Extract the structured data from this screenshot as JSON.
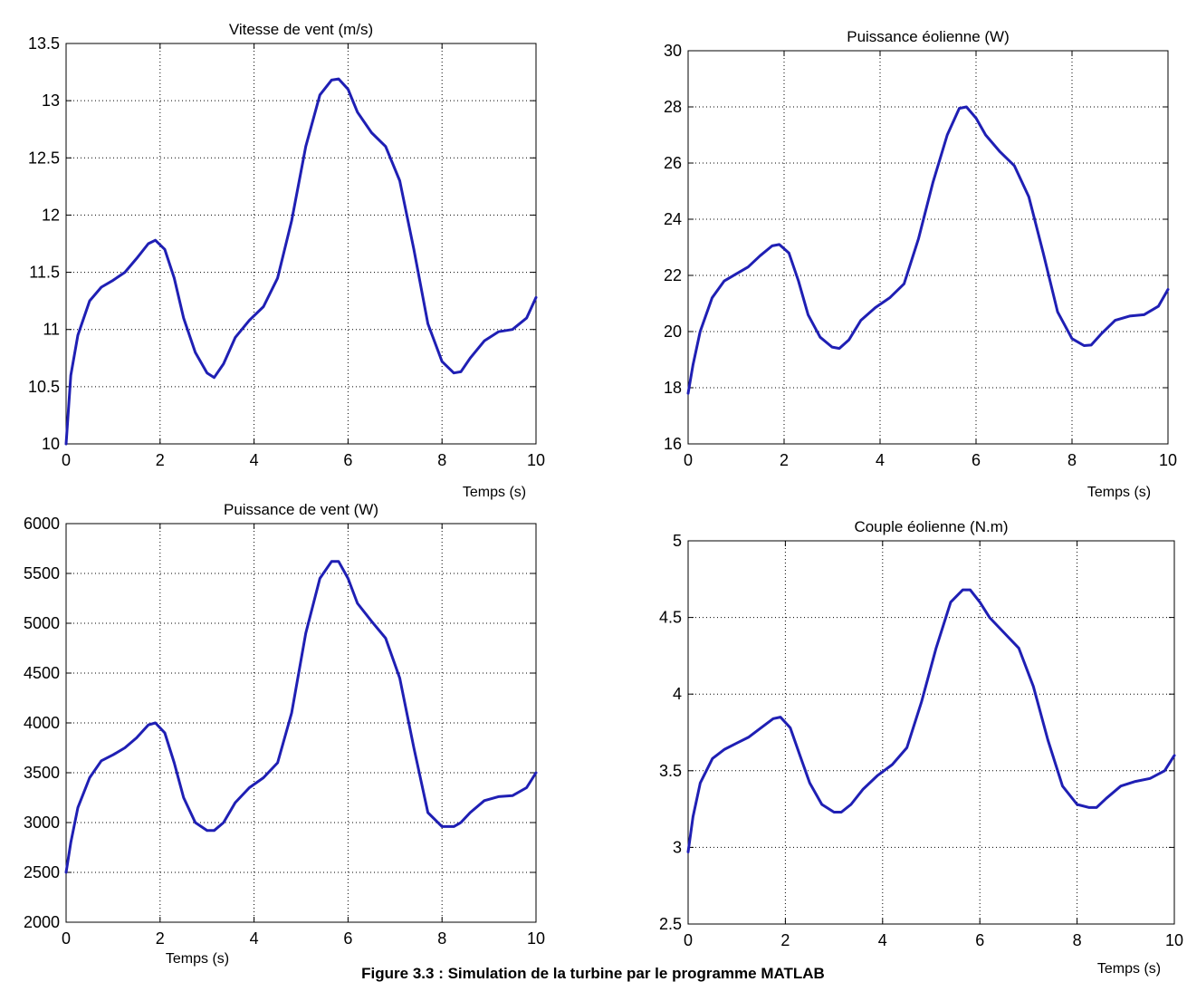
{
  "caption": "Figure 3.3 : Simulation de la turbine par le programme MATLAB",
  "style": {
    "line_color": "#1f1fb4",
    "grid_color": "#000000",
    "background": "#ffffff"
  },
  "chart_data": [
    {
      "type": "line",
      "title": "Vitesse de vent (m/s)",
      "xlabel": "Temps (s)",
      "ylabel": "",
      "xlim": [
        0,
        10
      ],
      "ylim": [
        10,
        13.5
      ],
      "xticks": [
        0,
        2,
        4,
        6,
        8,
        10
      ],
      "yticks": [
        10,
        10.5,
        11,
        11.5,
        12,
        12.5,
        13,
        13.5
      ],
      "grid": true,
      "x": [
        0,
        0.1,
        0.25,
        0.5,
        0.75,
        1.0,
        1.25,
        1.5,
        1.75,
        1.9,
        2.1,
        2.3,
        2.5,
        2.75,
        3.0,
        3.15,
        3.35,
        3.6,
        3.9,
        4.2,
        4.5,
        4.8,
        5.1,
        5.4,
        5.65,
        5.8,
        6.0,
        6.2,
        6.5,
        6.8,
        7.1,
        7.4,
        7.7,
        8.0,
        8.25,
        8.4,
        8.6,
        8.9,
        9.2,
        9.5,
        9.8,
        10.0
      ],
      "y": [
        10.0,
        10.6,
        10.95,
        11.25,
        11.37,
        11.43,
        11.5,
        11.62,
        11.75,
        11.78,
        11.7,
        11.45,
        11.1,
        10.8,
        10.62,
        10.58,
        10.7,
        10.93,
        11.08,
        11.2,
        11.45,
        11.95,
        12.6,
        13.05,
        13.18,
        13.19,
        13.1,
        12.9,
        12.72,
        12.6,
        12.3,
        11.7,
        11.05,
        10.72,
        10.62,
        10.63,
        10.75,
        10.9,
        10.98,
        11.0,
        11.1,
        11.28
      ]
    },
    {
      "type": "line",
      "title": "Puissance éolienne (W)",
      "xlabel": "Temps (s)",
      "ylabel": "",
      "xlim": [
        0,
        10
      ],
      "ylim": [
        16,
        30
      ],
      "xticks": [
        0,
        2,
        4,
        6,
        8,
        10
      ],
      "yticks": [
        16,
        18,
        20,
        22,
        24,
        26,
        28,
        30
      ],
      "grid": true,
      "x": [
        0,
        0.1,
        0.25,
        0.5,
        0.75,
        1.0,
        1.25,
        1.5,
        1.75,
        1.9,
        2.1,
        2.3,
        2.5,
        2.75,
        3.0,
        3.15,
        3.35,
        3.6,
        3.9,
        4.2,
        4.5,
        4.8,
        5.1,
        5.4,
        5.65,
        5.8,
        6.0,
        6.2,
        6.5,
        6.8,
        7.1,
        7.4,
        7.7,
        8.0,
        8.25,
        8.4,
        8.6,
        8.9,
        9.2,
        9.5,
        9.8,
        10.0
      ],
      "y": [
        17.8,
        18.8,
        20.0,
        21.2,
        21.8,
        22.05,
        22.3,
        22.7,
        23.05,
        23.1,
        22.8,
        21.8,
        20.6,
        19.8,
        19.45,
        19.4,
        19.7,
        20.4,
        20.85,
        21.2,
        21.7,
        23.3,
        25.3,
        27.0,
        27.95,
        28.0,
        27.6,
        27.0,
        26.4,
        25.9,
        24.8,
        22.8,
        20.7,
        19.75,
        19.5,
        19.52,
        19.9,
        20.4,
        20.55,
        20.6,
        20.9,
        21.5
      ]
    },
    {
      "type": "line",
      "title": "Puissance de vent (W)",
      "xlabel": "Temps (s)",
      "ylabel": "",
      "xlim": [
        0,
        10
      ],
      "ylim": [
        2000,
        6000
      ],
      "xticks": [
        0,
        2,
        4,
        6,
        8,
        10
      ],
      "yticks": [
        2000,
        2500,
        3000,
        3500,
        4000,
        4500,
        5000,
        5500,
        6000
      ],
      "grid": true,
      "x": [
        0,
        0.1,
        0.25,
        0.5,
        0.75,
        1.0,
        1.25,
        1.5,
        1.75,
        1.9,
        2.1,
        2.3,
        2.5,
        2.75,
        3.0,
        3.15,
        3.35,
        3.6,
        3.9,
        4.2,
        4.5,
        4.8,
        5.1,
        5.4,
        5.65,
        5.8,
        6.0,
        6.2,
        6.5,
        6.8,
        7.1,
        7.4,
        7.7,
        8.0,
        8.25,
        8.4,
        8.6,
        8.9,
        9.2,
        9.5,
        9.8,
        10.0
      ],
      "y": [
        2500,
        2800,
        3150,
        3450,
        3620,
        3680,
        3750,
        3850,
        3980,
        4000,
        3900,
        3600,
        3250,
        3000,
        2920,
        2920,
        3000,
        3200,
        3350,
        3450,
        3600,
        4100,
        4900,
        5450,
        5620,
        5620,
        5450,
        5200,
        5020,
        4850,
        4450,
        3750,
        3100,
        2960,
        2960,
        3000,
        3100,
        3220,
        3260,
        3270,
        3350,
        3500
      ]
    },
    {
      "type": "line",
      "title": "Couple éolienne (N.m)",
      "xlabel": "Temps (s)",
      "ylabel": "",
      "xlim": [
        0,
        10
      ],
      "ylim": [
        2.5,
        5
      ],
      "xticks": [
        0,
        2,
        4,
        6,
        8,
        10
      ],
      "yticks": [
        2.5,
        3,
        3.5,
        4,
        4.5,
        5
      ],
      "grid": true,
      "x": [
        0,
        0.1,
        0.25,
        0.5,
        0.75,
        1.0,
        1.25,
        1.5,
        1.75,
        1.9,
        2.1,
        2.3,
        2.5,
        2.75,
        3.0,
        3.15,
        3.35,
        3.6,
        3.9,
        4.2,
        4.5,
        4.8,
        5.1,
        5.4,
        5.65,
        5.8,
        6.0,
        6.2,
        6.5,
        6.8,
        7.1,
        7.4,
        7.7,
        8.0,
        8.25,
        8.4,
        8.6,
        8.9,
        9.2,
        9.5,
        9.8,
        10.0
      ],
      "y": [
        2.97,
        3.2,
        3.42,
        3.58,
        3.64,
        3.68,
        3.72,
        3.78,
        3.84,
        3.85,
        3.78,
        3.6,
        3.42,
        3.28,
        3.23,
        3.23,
        3.28,
        3.38,
        3.47,
        3.54,
        3.65,
        3.95,
        4.3,
        4.6,
        4.68,
        4.68,
        4.6,
        4.5,
        4.4,
        4.3,
        4.05,
        3.7,
        3.4,
        3.28,
        3.26,
        3.26,
        3.32,
        3.4,
        3.43,
        3.45,
        3.5,
        3.6
      ]
    }
  ]
}
